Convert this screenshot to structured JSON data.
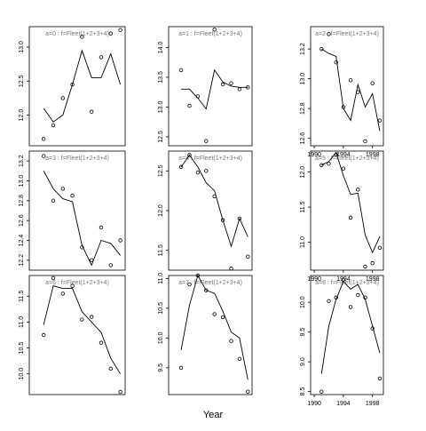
{
  "chart_data": {
    "type": "scatter",
    "xlabel": "Year",
    "overlay": "line",
    "marker": "open-circle",
    "colors": {
      "axis": "#000000",
      "line": "#000000",
      "panel_label": "#777777"
    },
    "panels": [
      {
        "label": "a=0  :  f=Fleet(1+2+3+4)",
        "xlim": [
          1989.5,
          1999.5
        ],
        "ylim": [
          11.55,
          13.3
        ],
        "yticks": [
          12.0,
          12.5,
          13.0
        ],
        "xticks": [],
        "x": [
          1991,
          1992,
          1993,
          1994,
          1995,
          1996,
          1997,
          1998,
          1999
        ],
        "points": [
          11.65,
          11.85,
          12.25,
          12.45,
          13.15,
          12.05,
          12.85,
          13.2,
          13.25
        ],
        "line": [
          12.1,
          11.9,
          12.0,
          12.45,
          12.95,
          12.55,
          12.55,
          12.9,
          12.45
        ]
      },
      {
        "label": "a=3  :  f=Fleet(1+2+3+4)",
        "xlim": [
          1989.5,
          1999.5
        ],
        "ylim": [
          12.1,
          13.3
        ],
        "yticks": [
          12.2,
          12.4,
          12.6,
          12.8,
          13.0,
          13.2
        ],
        "xticks": [],
        "x": [
          1991,
          1992,
          1993,
          1994,
          1995,
          1996,
          1997,
          1998,
          1999
        ],
        "points": [
          13.25,
          12.8,
          12.92,
          12.85,
          12.33,
          12.2,
          12.53,
          12.15,
          12.4
        ],
        "line": [
          13.1,
          12.92,
          12.82,
          12.79,
          12.35,
          12.15,
          12.4,
          12.37,
          12.25
        ]
      },
      {
        "label": "a=6  :  f=Fleet(1+2+3+4)",
        "xlim": [
          1989.5,
          1999.5
        ],
        "ylim": [
          9.6,
          11.9
        ],
        "yticks": [
          10.0,
          10.5,
          11.0,
          11.5
        ],
        "xticks": [],
        "x": [
          1991,
          1992,
          1993,
          1994,
          1995,
          1996,
          1997,
          1998,
          1999
        ],
        "points": [
          10.75,
          11.85,
          11.55,
          11.7,
          11.05,
          11.1,
          10.6,
          10.1,
          9.65
        ],
        "line": [
          10.95,
          11.7,
          11.65,
          11.65,
          11.2,
          11.0,
          10.8,
          10.3,
          10.0
        ]
      },
      {
        "label": "a=1  :  f=Fleet(1+2+3+4)",
        "xlim": [
          1989.5,
          1999.5
        ],
        "ylim": [
          12.35,
          14.35
        ],
        "yticks": [
          12.5,
          13.0,
          13.5,
          14.0
        ],
        "xticks": [],
        "x": [
          1991,
          1992,
          1993,
          1994,
          1995,
          1996,
          1997,
          1998,
          1999
        ],
        "points": [
          13.62,
          13.02,
          13.18,
          12.43,
          14.3,
          13.38,
          13.4,
          13.3,
          13.33
        ],
        "line": [
          13.3,
          13.3,
          13.15,
          12.97,
          13.62,
          13.42,
          13.35,
          13.33,
          13.33
        ]
      },
      {
        "label": "a=4  :  f=Fleet(1+2+3+4)",
        "xlim": [
          1989.5,
          1999.5
        ],
        "ylim": [
          11.25,
          12.75
        ],
        "yticks": [
          11.5,
          12.0,
          12.5
        ],
        "xticks": [],
        "x": [
          1991,
          1992,
          1993,
          1994,
          1995,
          1996,
          1997,
          1998,
          1999
        ],
        "points": [
          12.55,
          12.7,
          12.48,
          12.5,
          12.18,
          11.88,
          11.27,
          11.9,
          11.42
        ],
        "line": [
          12.55,
          12.7,
          12.55,
          12.35,
          12.25,
          11.88,
          11.55,
          11.9,
          11.67
        ]
      },
      {
        "label": "a=7  :  f=Fleet(1+2+3+4)",
        "xlim": [
          1989.5,
          1999.5
        ],
        "ylim": [
          9.05,
          11.05
        ],
        "yticks": [
          9.5,
          10.0,
          10.5,
          11.0
        ],
        "xticks": [],
        "x": [
          1991,
          1992,
          1993,
          1994,
          1995,
          1996,
          1997,
          1998,
          1999
        ],
        "points": [
          9.5,
          10.9,
          11.05,
          10.8,
          10.4,
          10.35,
          9.95,
          9.65,
          9.1
        ],
        "line": [
          9.8,
          10.55,
          11.05,
          10.8,
          10.75,
          10.45,
          10.1,
          10.0,
          9.3
        ]
      },
      {
        "label": "a=2  :  f=Fleet(1+2+3+4)",
        "xlim": [
          1989.5,
          1999.5
        ],
        "ylim": [
          12.55,
          13.35
        ],
        "yticks": [
          12.6,
          12.8,
          13.0,
          13.2
        ],
        "xticks": [
          1990,
          1994,
          1998
        ],
        "x": [
          1991,
          1992,
          1993,
          1994,
          1995,
          1996,
          1997,
          1998,
          1999
        ],
        "points": [
          13.2,
          13.3,
          13.11,
          12.81,
          12.99,
          12.91,
          12.58,
          12.97,
          12.72
        ],
        "line": [
          13.2,
          13.17,
          13.15,
          12.8,
          12.72,
          12.96,
          12.81,
          12.9,
          12.65
        ]
      },
      {
        "label": "a=5  :  f=Fleet(1+2+3+4)",
        "xlim": [
          1989.5,
          1999.5
        ],
        "ylim": [
          10.6,
          12.3
        ],
        "yticks": [
          11.0,
          11.5,
          12.0
        ],
        "xticks": [
          1990,
          1994,
          1998
        ],
        "x": [
          1991,
          1992,
          1993,
          1994,
          1995,
          1996,
          1997,
          1998,
          1999
        ],
        "points": [
          12.1,
          12.12,
          12.25,
          12.05,
          11.35,
          11.75,
          10.65,
          10.7,
          10.92
        ],
        "line": [
          12.1,
          12.15,
          12.28,
          11.95,
          11.68,
          11.7,
          11.1,
          10.85,
          11.08
        ]
      },
      {
        "label": "a=8  :  f=Fleet(1+2+3+4)",
        "xlim": [
          1989.5,
          1999.5
        ],
        "ylim": [
          8.45,
          10.45
        ],
        "yticks": [
          8.5,
          9.0,
          9.5,
          10.0
        ],
        "xticks": [
          1990,
          1994,
          1998
        ],
        "x": [
          1991,
          1992,
          1993,
          1994,
          1995,
          1996,
          1997,
          1998,
          1999
        ],
        "points": [
          8.5,
          10.02,
          10.08,
          10.38,
          9.92,
          10.12,
          10.08,
          9.56,
          8.72
        ],
        "line": [
          8.8,
          9.6,
          10.05,
          10.35,
          10.22,
          10.3,
          10.05,
          9.6,
          9.15
        ]
      }
    ]
  }
}
